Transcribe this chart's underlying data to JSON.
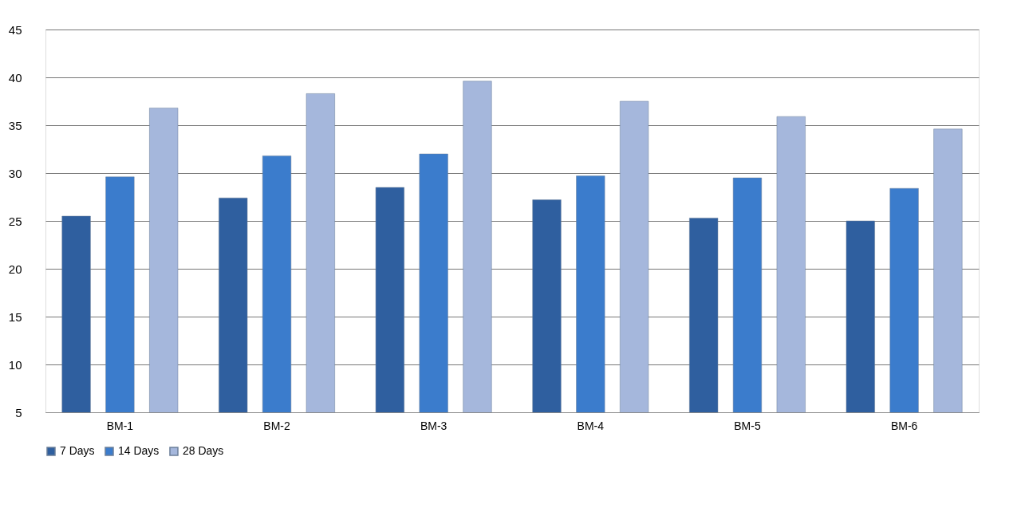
{
  "chart_data": {
    "type": "bar",
    "categories": [
      "BM-1",
      "BM-2",
      "BM-3",
      "BM-4",
      "BM-5",
      "BM-6"
    ],
    "series": [
      {
        "name": "7 Days",
        "color": "#2f5f9f",
        "values": [
          25.5,
          27.4,
          28.5,
          27.2,
          25.3,
          25.0
        ]
      },
      {
        "name": "14 Days",
        "color": "#3b7ccc",
        "values": [
          29.6,
          31.8,
          32.0,
          29.7,
          29.5,
          28.4
        ]
      },
      {
        "name": "28 Days",
        "color": "#a5b7dc",
        "values": [
          36.8,
          38.3,
          39.6,
          37.5,
          35.9,
          34.6
        ]
      }
    ],
    "ylim": [
      5,
      45
    ],
    "yticks": [
      5,
      10,
      15,
      20,
      25,
      30,
      35,
      40,
      45
    ],
    "grid": "y",
    "legend": "bottom"
  }
}
